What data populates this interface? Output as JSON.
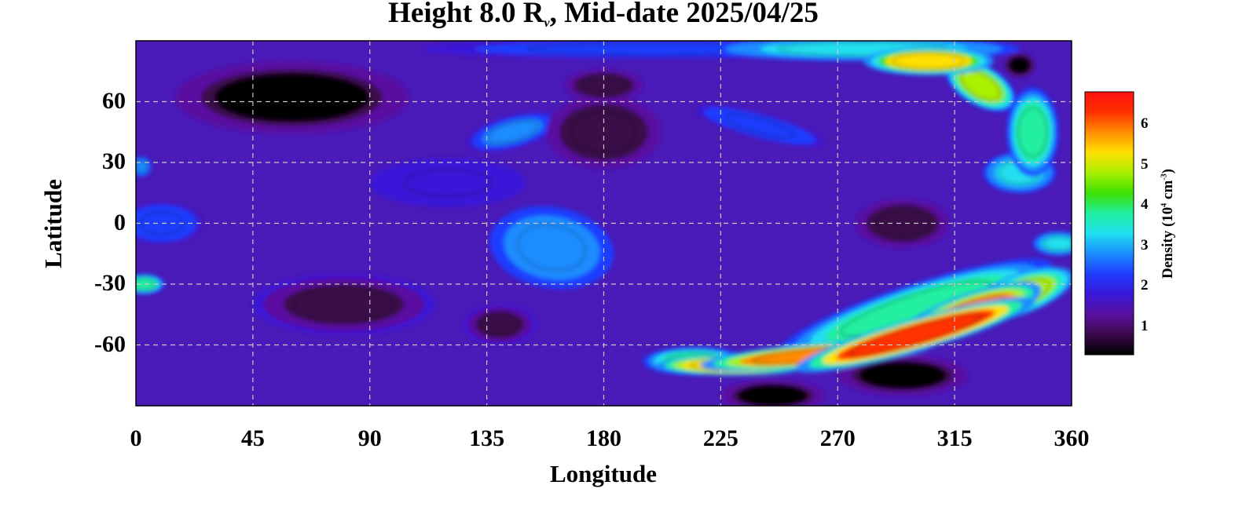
{
  "chart_data": {
    "type": "heatmap",
    "title_prefix": "Height 8.0 R",
    "title_subscript": "ν",
    "title_suffix": ", Mid-date 2025/04/25",
    "xlabel": "Longitude",
    "ylabel": "Latitude",
    "xlim": [
      0,
      360
    ],
    "ylim": [
      -90,
      90
    ],
    "x_ticks": [
      0,
      45,
      90,
      135,
      180,
      225,
      270,
      315,
      360
    ],
    "y_ticks": [
      60,
      30,
      0,
      -30,
      -60
    ],
    "grid": true,
    "colorbar": {
      "label_prefix": "Density (10",
      "label_exp1": "4",
      "label_mid": " cm",
      "label_exp2": "-3",
      "label_suffix": ")",
      "ticks": [
        6,
        5,
        4,
        3,
        2,
        1
      ],
      "range": [
        0.3,
        6.8
      ],
      "colormap": [
        "#000000",
        "#3b0a4a",
        "#5a10a0",
        "#3a18d8",
        "#1f3cff",
        "#1a8cff",
        "#20e0f0",
        "#20f0a0",
        "#3ce000",
        "#aaf000",
        "#ffe000",
        "#ff8c00",
        "#ff3000",
        "#ff1010"
      ]
    },
    "features": [
      {
        "lon": 300,
        "lat": -55,
        "value": 6.3,
        "sx": 48,
        "sy": 8,
        "rot": 16
      },
      {
        "lon": 320,
        "lat": -45,
        "value": 5.6,
        "sx": 30,
        "sy": 10,
        "rot": 20
      },
      {
        "lon": 262,
        "lat": -65,
        "value": 5.8,
        "sx": 45,
        "sy": 6,
        "rot": 5
      },
      {
        "lon": 230,
        "lat": -70,
        "value": 5.5,
        "sx": 30,
        "sy": 5,
        "rot": 0
      },
      {
        "lon": 340,
        "lat": -35,
        "value": 4.8,
        "sx": 22,
        "sy": 10,
        "rot": 20
      },
      {
        "lon": 300,
        "lat": -42,
        "value": 3.6,
        "sx": 55,
        "sy": 12,
        "rot": 18
      },
      {
        "lon": 215,
        "lat": -68,
        "value": 3.8,
        "sx": 20,
        "sy": 7,
        "rot": 0
      },
      {
        "lon": 305,
        "lat": 80,
        "value": 5.2,
        "sx": 25,
        "sy": 7,
        "rot": 0
      },
      {
        "lon": 325,
        "lat": 68,
        "value": 4.6,
        "sx": 15,
        "sy": 10,
        "rot": -30
      },
      {
        "lon": 345,
        "lat": 45,
        "value": 4.0,
        "sx": 10,
        "sy": 22,
        "rot": 0
      },
      {
        "lon": 340,
        "lat": 25,
        "value": 3.4,
        "sx": 14,
        "sy": 10,
        "rot": 0
      },
      {
        "lon": 355,
        "lat": -10,
        "value": 3.4,
        "sx": 10,
        "sy": 6,
        "rot": 0
      },
      {
        "lon": 280,
        "lat": 86,
        "value": 3.4,
        "sx": 60,
        "sy": 6,
        "rot": 0
      },
      {
        "lon": 160,
        "lat": -12,
        "value": 2.8,
        "sx": 24,
        "sy": 20,
        "rot": -10
      },
      {
        "lon": 145,
        "lat": 45,
        "value": 2.7,
        "sx": 18,
        "sy": 8,
        "rot": 15
      },
      {
        "lon": 240,
        "lat": 48,
        "value": 2.5,
        "sx": 25,
        "sy": 6,
        "rot": -15
      },
      {
        "lon": 3,
        "lat": -30,
        "value": 3.8,
        "sx": 8,
        "sy": 5,
        "rot": 0
      },
      {
        "lon": 2,
        "lat": 28,
        "value": 3.0,
        "sx": 4,
        "sy": 5,
        "rot": 0
      },
      {
        "lon": 10,
        "lat": 0,
        "value": 2.3,
        "sx": 15,
        "sy": 10,
        "rot": 0
      },
      {
        "lon": 200,
        "lat": 86,
        "value": 2.2,
        "sx": 90,
        "sy": 5,
        "rot": 0
      },
      {
        "lon": 120,
        "lat": 20,
        "value": 1.9,
        "sx": 30,
        "sy": 12,
        "rot": 0
      },
      {
        "lon": 60,
        "lat": 62,
        "value": 0.5,
        "sx": 45,
        "sy": 18,
        "rot": 0
      },
      {
        "lon": 180,
        "lat": 45,
        "value": 0.6,
        "sx": 22,
        "sy": 18,
        "rot": 0
      },
      {
        "lon": 180,
        "lat": 68,
        "value": 0.6,
        "sx": 15,
        "sy": 8,
        "rot": 0
      },
      {
        "lon": 295,
        "lat": -75,
        "value": 0.3,
        "sx": 25,
        "sy": 10,
        "rot": 0
      },
      {
        "lon": 245,
        "lat": -85,
        "value": 0.3,
        "sx": 20,
        "sy": 8,
        "rot": 0
      },
      {
        "lon": 340,
        "lat": 78,
        "value": 0.2,
        "sx": 6,
        "sy": 6,
        "rot": 0
      },
      {
        "lon": 295,
        "lat": 0,
        "value": 0.7,
        "sx": 18,
        "sy": 12,
        "rot": 0
      },
      {
        "lon": 80,
        "lat": -40,
        "value": 0.8,
        "sx": 35,
        "sy": 15,
        "rot": 0
      },
      {
        "lon": 140,
        "lat": -50,
        "value": 0.8,
        "sx": 14,
        "sy": 10,
        "rot": 0
      }
    ]
  }
}
